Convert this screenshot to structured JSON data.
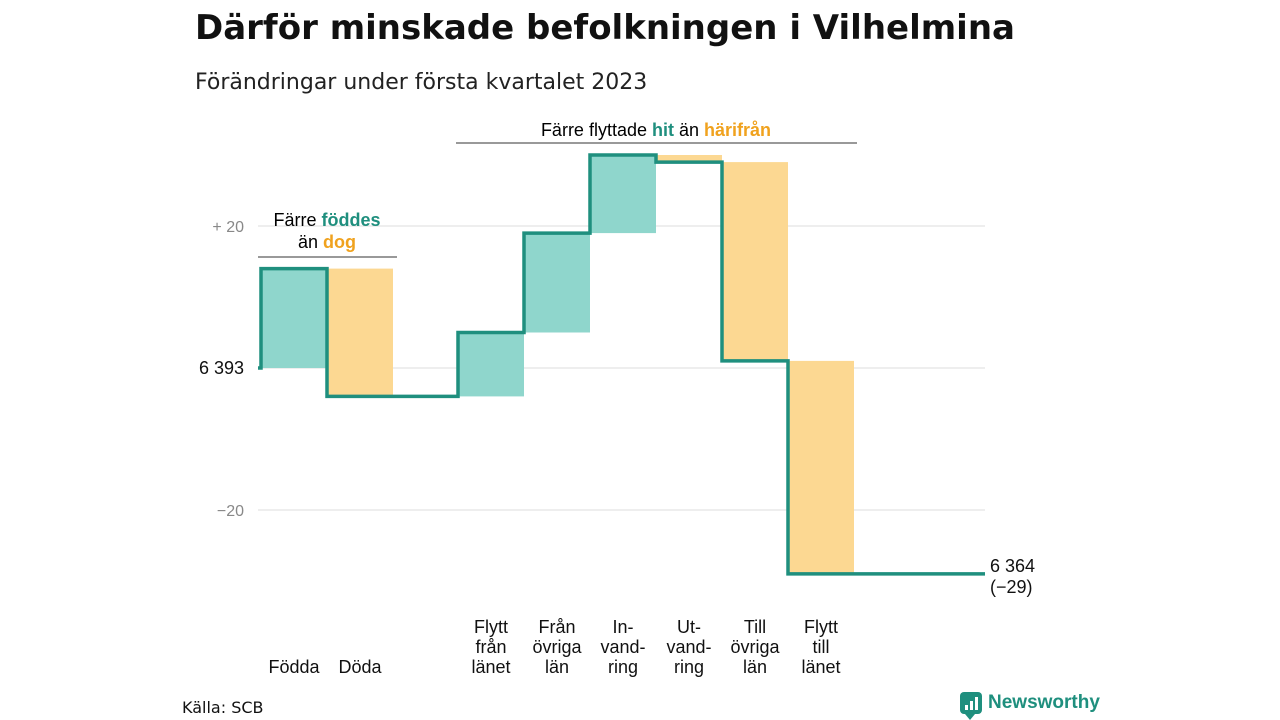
{
  "header": {
    "title": "Därför minskade befolkningen i Vilhelmina",
    "subtitle": "Förändringar under första kvartalet 2023"
  },
  "source": "Källa: SCB",
  "brand": {
    "name": "Newsworthy",
    "icon": "newsworthy-logo-icon"
  },
  "colors": {
    "positive": "#8fd6cc",
    "negative": "#fcd892",
    "line": "#1f8f7e",
    "accent_pos": "#1f8f7e",
    "accent_neg": "#f0a21e",
    "grid": "#dddddd",
    "tick": "#888888"
  },
  "annotations": {
    "births": {
      "line1_a": "Färre ",
      "line1_b": "föddes",
      "line2_a": "än ",
      "line2_b": "dog"
    },
    "moves": {
      "part1": "Färre flyttade ",
      "part2": "hit",
      "part3": " än ",
      "part4": "härifrån"
    }
  },
  "chart_data": {
    "type": "waterfall",
    "title": "Därför minskade befolkningen i Vilhelmina",
    "subtitle": "Förändringar under första kvartalet 2023",
    "start_value": 6393,
    "start_label": "6 393",
    "end_value": 6364,
    "end_label": "6 364",
    "end_change_label": "(−29)",
    "yticks": [
      {
        "value": 20,
        "label": "+ 20"
      },
      {
        "value": -20,
        "label": "−20"
      }
    ],
    "ylim": [
      -30,
      32
    ],
    "grid": true,
    "steps": [
      {
        "key": "fodda",
        "label_lines": [
          "Födda"
        ],
        "change": 14
      },
      {
        "key": "doda",
        "label_lines": [
          "Döda"
        ],
        "change": -18
      },
      {
        "key": "flytt_fran_lanet",
        "label_lines": [
          "Flytt",
          "från",
          "länet"
        ],
        "change": 9
      },
      {
        "key": "fran_ovriga_lan",
        "label_lines": [
          "Från",
          "övriga",
          "län"
        ],
        "change": 14
      },
      {
        "key": "invandring",
        "label_lines": [
          "In-",
          "vand-",
          "ring"
        ],
        "change": 11
      },
      {
        "key": "utvandring",
        "label_lines": [
          "Ut-",
          "vand-",
          "ring"
        ],
        "change": -1
      },
      {
        "key": "till_ovriga_lan",
        "label_lines": [
          "Till",
          "övriga",
          "län"
        ],
        "change": -28
      },
      {
        "key": "flytt_till_lanet",
        "label_lines": [
          "Flytt",
          "till",
          "länet"
        ],
        "change": -30
      }
    ]
  }
}
